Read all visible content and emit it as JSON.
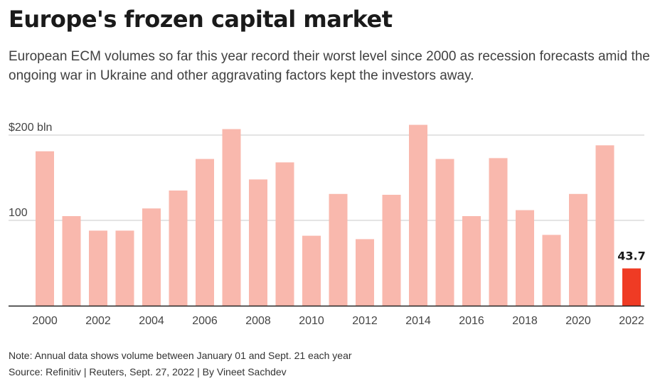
{
  "header": {
    "title": "Europe's frozen capital market",
    "subtitle": "European ECM volumes so far this year record their worst level since 2000 as recession forecasts amid the ongoing war in Ukraine and other aggravating factors kept the investors away."
  },
  "footer": {
    "note": "Note: Annual data shows volume between January 01 and Sept. 21 each year",
    "source": "Source: Refinitiv | Reuters, Sept. 27, 2022 | By Vineet Sachdev"
  },
  "colors": {
    "bar": "#f9b8ad",
    "highlight": "#ef3b24",
    "grid": "#c8c8c8",
    "axis": "#222222"
  },
  "chart_data": {
    "type": "bar",
    "categories": [
      "2000",
      "2001",
      "2002",
      "2003",
      "2004",
      "2005",
      "2006",
      "2007",
      "2008",
      "2009",
      "2010",
      "2011",
      "2012",
      "2013",
      "2014",
      "2015",
      "2016",
      "2017",
      "2018",
      "2019",
      "2020",
      "2021",
      "2022"
    ],
    "values": [
      181,
      105,
      88,
      88,
      114,
      135,
      172,
      207,
      148,
      168,
      82,
      131,
      78,
      130,
      212,
      172,
      105,
      173,
      112,
      83,
      131,
      188,
      43.7
    ],
    "x_tick_labels": [
      "2000",
      "2002",
      "2004",
      "2006",
      "2008",
      "2010",
      "2012",
      "2014",
      "2016",
      "2018",
      "2020",
      "2022"
    ],
    "y_ticks": [
      {
        "value": 100,
        "label": "100"
      },
      {
        "value": 200,
        "label": "$200 bln"
      }
    ],
    "ylim": [
      0,
      220
    ],
    "highlight_category": "2022",
    "data_labels": [
      {
        "category": "2022",
        "label": "43.7"
      }
    ],
    "grid": true,
    "xlabel": "",
    "ylabel": ""
  }
}
